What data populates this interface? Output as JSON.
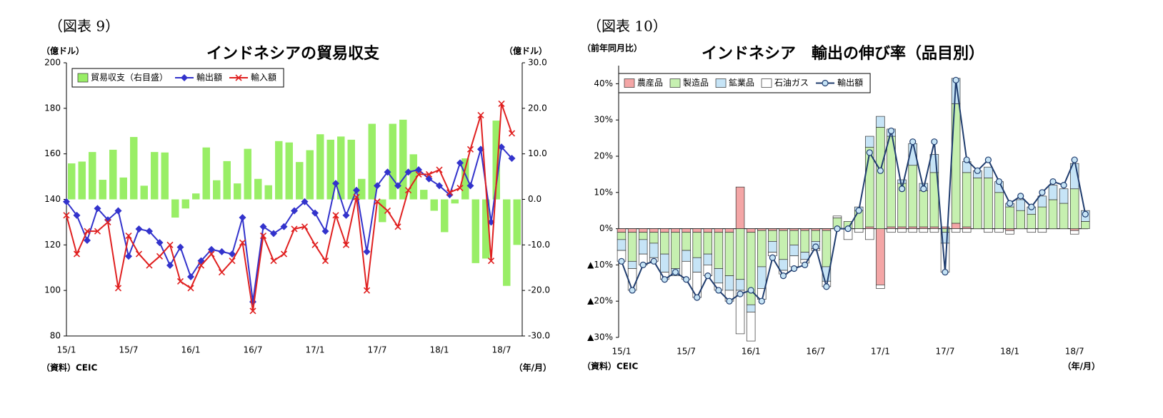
{
  "chart_data": [
    {
      "type": "bar_line",
      "figure_label": "（図表 9）",
      "title": "インドネシアの貿易収支",
      "y_label": "（億ドル）",
      "y2_label": "（億ドル）",
      "source": "（資料）CEIC",
      "x_label": "（年/月）",
      "categories": [
        "15/1",
        null,
        null,
        null,
        null,
        null,
        "15/7",
        null,
        null,
        null,
        null,
        null,
        "16/1",
        null,
        null,
        null,
        null,
        null,
        "16/7",
        null,
        null,
        null,
        null,
        null,
        "17/1",
        null,
        null,
        null,
        null,
        null,
        "17/7",
        null,
        null,
        null,
        null,
        null,
        "18/1",
        null,
        null,
        null,
        null,
        null,
        "18/7",
        null
      ],
      "ylim": [
        80,
        200
      ],
      "yticks": [
        80,
        100,
        120,
        140,
        160,
        180,
        200
      ],
      "y2lim": [
        -30,
        30
      ],
      "y2ticks": [
        {
          "value": -30,
          "label": "-30.0"
        },
        {
          "value": -20,
          "label": "-20.0"
        },
        {
          "value": -10,
          "label": "-10.0"
        },
        {
          "value": 0,
          "label": "0.0"
        },
        {
          "value": 10,
          "label": "10.0"
        },
        {
          "value": 20,
          "label": "20.0"
        },
        {
          "value": 30,
          "label": "30.0"
        }
      ],
      "legend": "top-left",
      "series": [
        {
          "name": "貿易収支（右目盛）",
          "type": "bar",
          "axis": "y2",
          "color": "#99ee66",
          "values": [
            7.9,
            8.3,
            10.4,
            4.3,
            10.9,
            4.8,
            13.7,
            3.0,
            10.4,
            10.3,
            -4,
            -2,
            1.3,
            11.4,
            4.2,
            8.4,
            3.5,
            11.1,
            4.5,
            3.1,
            12.8,
            12.5,
            8.2,
            10.8,
            14.3,
            13.1,
            13.8,
            13.1,
            4.5,
            16.6,
            -5,
            16.6,
            17.5,
            9.9,
            2.1,
            -2.5,
            -7.2,
            -0.9,
            9,
            -14,
            -13,
            17.3,
            -19,
            -10
          ]
        },
        {
          "name": "輸出額",
          "type": "line",
          "marker": "diamond",
          "color": "#3333cc",
          "values": [
            139,
            133,
            122,
            136,
            131,
            135,
            115,
            127,
            126,
            121,
            111,
            119,
            106,
            113,
            118,
            117,
            116,
            132,
            95,
            128,
            125,
            128,
            135,
            139,
            134,
            126,
            147,
            133,
            144,
            117,
            146,
            152,
            146,
            152,
            153,
            149,
            146,
            142,
            156,
            146,
            162,
            130,
            163,
            158
          ]
        },
        {
          "name": "輸入額",
          "type": "line",
          "marker": "x",
          "color": "#e02020",
          "values": [
            133,
            116,
            126,
            126,
            130,
            101,
            124,
            116,
            111,
            115,
            120,
            104,
            101,
            111,
            116,
            108,
            113,
            121,
            91,
            124,
            113,
            116,
            127,
            128,
            120,
            113,
            133,
            120,
            141,
            100,
            139,
            135,
            128,
            144,
            151,
            151,
            153,
            143,
            145,
            162,
            177,
            113,
            182,
            169
          ]
        }
      ]
    },
    {
      "type": "stacked_bar_line",
      "figure_label": "（図表 10）",
      "title": "インドネシア　輸出の伸び率（品目別）",
      "y_label": "（前年同月比）",
      "source": "（資料）CEIC",
      "x_label": "（年/月）",
      "categories": [
        "15/1",
        null,
        null,
        null,
        null,
        null,
        "15/7",
        null,
        null,
        null,
        null,
        null,
        "16/1",
        null,
        null,
        null,
        null,
        null,
        "16/7",
        null,
        null,
        null,
        null,
        null,
        "17/1",
        null,
        null,
        null,
        null,
        null,
        "17/7",
        null,
        null,
        null,
        null,
        null,
        "18/1",
        null,
        null,
        null,
        null,
        null,
        "18/7",
        null
      ],
      "ylim": [
        -30,
        45
      ],
      "yticks": [
        {
          "value": -30,
          "label": "▲30%"
        },
        {
          "value": -20,
          "label": "▲20%"
        },
        {
          "value": -10,
          "label": "▲10%"
        },
        {
          "value": 0,
          "label": "0%"
        },
        {
          "value": 10,
          "label": "10%"
        },
        {
          "value": 20,
          "label": "20%"
        },
        {
          "value": 30,
          "label": "30%"
        },
        {
          "value": 40,
          "label": "40%"
        }
      ],
      "legend": "top-left",
      "series": [
        {
          "name": "農産品",
          "type": "bar",
          "color": "#f4a6a6",
          "values": [
            -1,
            -1,
            -1,
            -1,
            -1,
            -1,
            -1,
            -1,
            -1,
            -1,
            -1,
            11.5,
            -1,
            -0.5,
            -0.5,
            -0.5,
            -0.5,
            -0.5,
            -0.5,
            -0.5,
            0,
            0,
            0,
            0.5,
            -15.5,
            0.5,
            0.5,
            0.5,
            0.5,
            0.5,
            0.5,
            1.5,
            0.5,
            0,
            0,
            0,
            -0.5,
            0,
            0,
            0,
            0,
            0,
            -0.5,
            0
          ]
        },
        {
          "name": "製造品",
          "type": "bar",
          "color": "#c6f0b0",
          "values": [
            -2,
            -8,
            -2,
            -3,
            -6,
            -10,
            -5,
            -7,
            -6,
            -10,
            -12,
            -14,
            -20,
            -10,
            -3,
            -8,
            -4,
            -6,
            -3,
            -10,
            3,
            2,
            5,
            22,
            28,
            25,
            12,
            17,
            10,
            15,
            -1,
            33,
            15,
            14,
            14,
            10,
            6,
            5,
            4,
            6,
            8,
            7,
            11,
            2
          ]
        },
        {
          "name": "鉱業品",
          "type": "bar",
          "color": "#c6e4f6",
          "values": [
            -3,
            -2,
            -4,
            -4,
            -5,
            -2,
            -3,
            -4,
            -3,
            -4,
            -4,
            -3,
            -2,
            -6,
            -3,
            -3,
            -3,
            -2,
            -2,
            -4,
            0,
            0,
            1,
            3,
            3,
            2,
            1,
            6,
            2,
            5,
            -3,
            7,
            3,
            2,
            3,
            3,
            1,
            3,
            2,
            3,
            4,
            4,
            7,
            3
          ]
        },
        {
          "name": "石油ガス",
          "type": "bar",
          "color": "#ffffff",
          "values": [
            -3,
            -6,
            -3,
            -1,
            -2,
            0,
            -5,
            -7,
            -3,
            -2,
            -3,
            -12,
            -8,
            -3,
            -1,
            -1,
            -3,
            -1,
            -0.5,
            -1.5,
            0.5,
            -3,
            -1,
            -3,
            -1,
            -1,
            -1,
            -1,
            -1,
            -1,
            -8,
            -1,
            -1,
            0,
            -1,
            -1,
            -1,
            0,
            -1,
            -1,
            0,
            0,
            -1,
            0
          ]
        },
        {
          "name": "輸出額",
          "type": "line",
          "marker": "circle",
          "color": "#1f3c6e",
          "values": [
            -9,
            -17,
            -10,
            -9,
            -14,
            -12,
            -14,
            -19,
            -13,
            -17,
            -20,
            -18,
            -17,
            -20,
            -8,
            -13,
            -11,
            -10,
            -5,
            -16,
            0,
            0,
            5,
            21,
            16,
            27,
            11,
            24,
            11,
            24,
            -12,
            41,
            19,
            16,
            19,
            13,
            7,
            9,
            6,
            10,
            13,
            12,
            19,
            4
          ]
        }
      ]
    }
  ]
}
